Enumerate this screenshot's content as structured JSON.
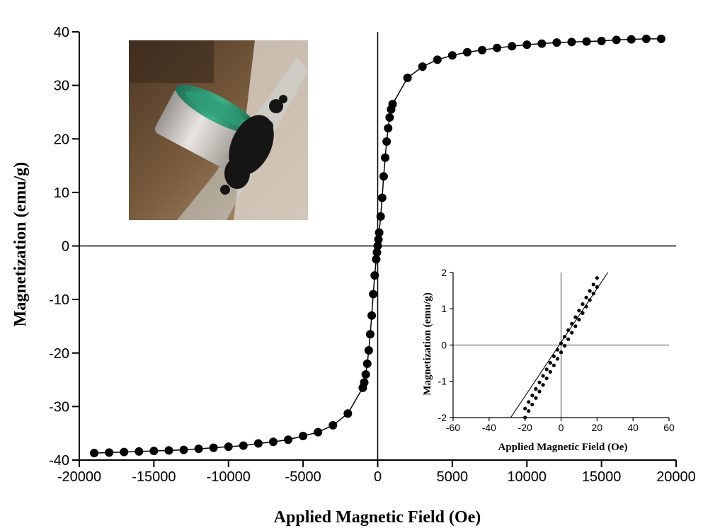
{
  "chart_data": [
    {
      "type": "line",
      "xlabel": "Applied Magnetic Field (Oe)",
      "ylabel": "Magnetization (emu/g)",
      "xlim": [
        -20000,
        20000
      ],
      "ylim": [
        -40,
        40
      ],
      "x_ticks": [
        -20000,
        -15000,
        -10000,
        -5000,
        0,
        5000,
        10000,
        15000,
        20000
      ],
      "y_ticks": [
        -40,
        -30,
        -20,
        -10,
        0,
        10,
        20,
        30,
        40
      ],
      "x_tick_labels": [
        "-20000",
        "-15000",
        "-10000",
        "-5000",
        "0",
        "5000",
        "10000",
        "15000",
        "20000"
      ],
      "y_tick_labels": [
        "-40",
        "-30",
        "-20",
        "-10",
        "0",
        "10",
        "20",
        "30",
        "40"
      ],
      "grid": false,
      "markers": "filled-circle",
      "line_color": "#000000",
      "series": [
        {
          "x": [
            -19000,
            -18000,
            -17000,
            -16000,
            -15000,
            -14000,
            -13000,
            -12000,
            -11000,
            -10000,
            -9000,
            -8000,
            -7000,
            -6000,
            -5000,
            -4000,
            -3000,
            -2000,
            -1000,
            -900,
            -800,
            -700,
            -600,
            -500,
            -400,
            -300,
            -200,
            -100,
            -50,
            0,
            50,
            100,
            200,
            300,
            400,
            500,
            600,
            700,
            800,
            900,
            1000,
            2000,
            3000,
            4000,
            5000,
            6000,
            7000,
            8000,
            9000,
            10000,
            11000,
            12000,
            13000,
            14000,
            15000,
            16000,
            17000,
            18000,
            19000
          ],
          "y": [
            -38.7,
            -38.6,
            -38.5,
            -38.4,
            -38.3,
            -38.2,
            -38.1,
            -37.9,
            -37.7,
            -37.5,
            -37.3,
            -36.9,
            -36.6,
            -36.2,
            -35.5,
            -34.8,
            -33.5,
            -31.3,
            -26.5,
            -25.5,
            -24,
            -22,
            -19.5,
            -16.5,
            -13,
            -9,
            -5.5,
            -2.5,
            -1.2,
            0,
            1.2,
            2.5,
            5.5,
            9,
            13,
            16.5,
            19.5,
            22,
            24,
            25.5,
            26.5,
            31.4,
            33.5,
            34.8,
            35.6,
            36.2,
            36.6,
            37,
            37.3,
            37.6,
            37.8,
            38,
            38.1,
            38.2,
            38.3,
            38.5,
            38.6,
            38.7,
            38.7
          ]
        }
      ]
    },
    {
      "type": "line",
      "xlabel": "Applied Magnetic Field (Oe)",
      "ylabel": "Magnetization (emu/g)",
      "xlim": [
        -60,
        60
      ],
      "ylim": [
        -2,
        2
      ],
      "x_ticks": [
        -60,
        -40,
        -20,
        0,
        20,
        40,
        60
      ],
      "y_ticks": [
        -2,
        -1,
        0,
        1,
        2
      ],
      "x_tick_labels": [
        "-60",
        "-40",
        "-20",
        "0",
        "20",
        "40",
        "60"
      ],
      "y_tick_labels": [
        "-2",
        "-1",
        "0",
        "1",
        "2"
      ],
      "grid": false,
      "markers": "filled-circle-small",
      "line_color": "#000000",
      "series": [
        {
          "x": [
            -20,
            -18,
            -16,
            -14,
            -12,
            -10,
            -8,
            -6,
            -4,
            -2,
            0,
            2,
            4,
            6,
            8,
            10,
            12,
            14,
            16,
            18,
            20
          ],
          "y": [
            -1.75,
            -1.57,
            -1.39,
            -1.21,
            -1.03,
            -0.85,
            -0.67,
            -0.49,
            -0.31,
            -0.13,
            0.05,
            0.23,
            0.41,
            0.59,
            0.77,
            0.95,
            1.13,
            1.31,
            1.49,
            1.67,
            1.85
          ]
        },
        {
          "x": [
            -20,
            -18,
            -16,
            -14,
            -12,
            -10,
            -8,
            -6,
            -4,
            -2,
            0,
            2,
            4,
            6,
            8,
            10,
            12,
            14,
            16,
            18,
            20
          ],
          "y": [
            -2.0,
            -1.82,
            -1.64,
            -1.46,
            -1.28,
            -1.1,
            -0.92,
            -0.74,
            -0.56,
            -0.38,
            -0.2,
            -0.02,
            0.16,
            0.34,
            0.52,
            0.7,
            0.88,
            1.06,
            1.24,
            1.42,
            1.6
          ]
        }
      ]
    }
  ],
  "photo": {
    "description_colors": [
      "#6b5138",
      "#c9b9a6",
      "#2a8a6a",
      "#1b1b1b"
    ]
  }
}
